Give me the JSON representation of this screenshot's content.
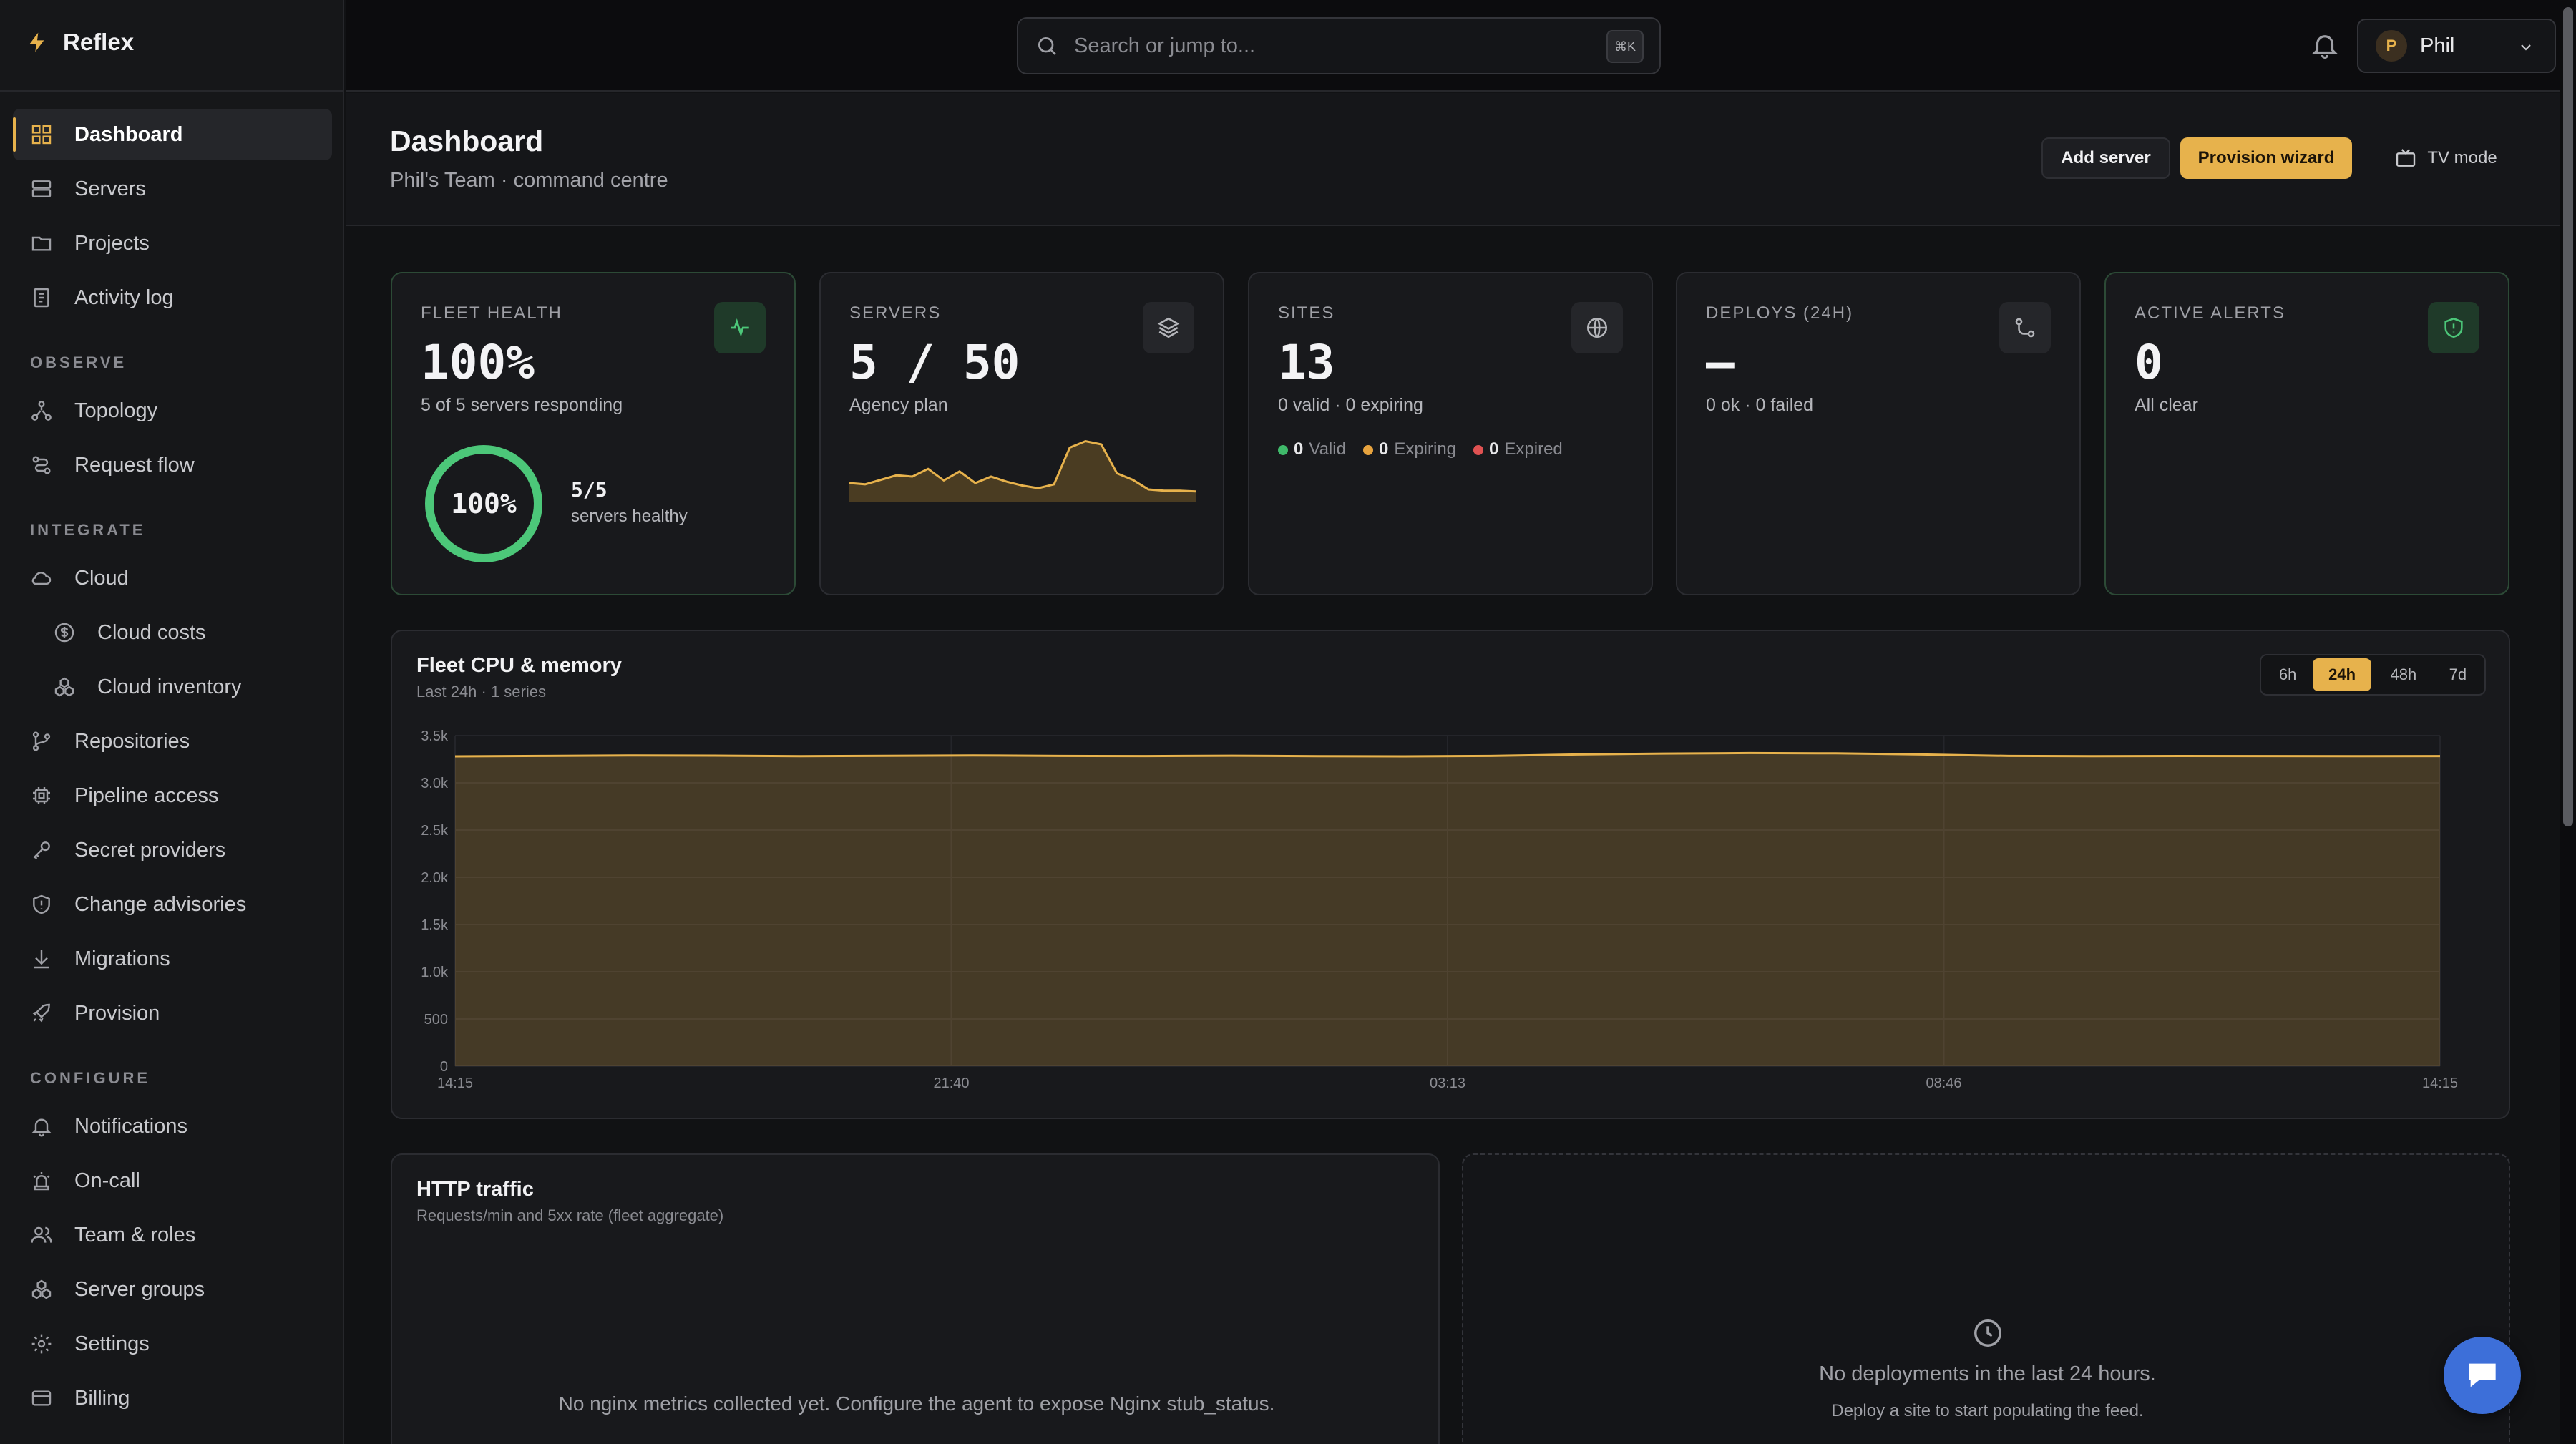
{
  "app": {
    "name": "Reflex"
  },
  "sidebar": {
    "items": [
      {
        "label": "Dashboard"
      },
      {
        "label": "Servers"
      },
      {
        "label": "Projects"
      },
      {
        "label": "Activity log"
      }
    ],
    "observe_title": "OBSERVE",
    "observe_items": [
      {
        "label": "Topology"
      },
      {
        "label": "Request flow"
      }
    ],
    "integrate_title": "INTEGRATE",
    "integrate_items": [
      {
        "label": "Cloud"
      },
      {
        "label": "Cloud costs"
      },
      {
        "label": "Cloud inventory"
      },
      {
        "label": "Repositories"
      },
      {
        "label": "Pipeline access"
      },
      {
        "label": "Secret providers"
      },
      {
        "label": "Change advisories"
      },
      {
        "label": "Migrations"
      },
      {
        "label": "Provision"
      }
    ],
    "configure_title": "CONFIGURE",
    "configure_items": [
      {
        "label": "Notifications"
      },
      {
        "label": "On-call"
      },
      {
        "label": "Team & roles"
      },
      {
        "label": "Server groups"
      },
      {
        "label": "Settings"
      },
      {
        "label": "Billing"
      }
    ]
  },
  "topbar": {
    "search_placeholder": "Search or jump to...",
    "search_shortcut": "⌘K",
    "user_initial": "P",
    "user_name": "Phil"
  },
  "header": {
    "title": "Dashboard",
    "subtitle": "Phil's Team · command centre",
    "add_server": "Add server",
    "provision_wizard": "Provision wizard",
    "tv_mode": "TV mode"
  },
  "cards": {
    "fleet_health": {
      "label": "FLEET HEALTH",
      "value": "100%",
      "sub": "5 of 5 servers responding",
      "ring_value": "100%",
      "ring_fraction": 1.0,
      "healthy_count": "5/5",
      "healthy_label": "servers healthy"
    },
    "servers": {
      "label": "SERVERS",
      "value": "5 / 50",
      "sub": "Agency plan",
      "spark": [
        0.3,
        0.28,
        0.35,
        0.42,
        0.4,
        0.52,
        0.34,
        0.48,
        0.3,
        0.4,
        0.32,
        0.26,
        0.22,
        0.28,
        0.85,
        0.95,
        0.9,
        0.45,
        0.35,
        0.2,
        0.18,
        0.18,
        0.17
      ]
    },
    "sites": {
      "label": "SITES",
      "value": "13",
      "sub": "0 valid · 0 expiring",
      "legend": [
        {
          "count": "0",
          "label": "Valid",
          "color": "#3fb96a"
        },
        {
          "count": "0",
          "label": "Expiring",
          "color": "#e7a33e"
        },
        {
          "count": "0",
          "label": "Expired",
          "color": "#e05252"
        }
      ]
    },
    "deploys": {
      "label": "DEPLOYS (24H)",
      "value": "—",
      "sub": "0 ok · 0 failed"
    },
    "alerts": {
      "label": "ACTIVE ALERTS",
      "value": "0",
      "sub": "All clear"
    }
  },
  "fleet_chart": {
    "title": "Fleet CPU & memory",
    "subtitle": "Last 24h · 1 series",
    "ranges": [
      "6h",
      "24h",
      "48h",
      "7d"
    ],
    "active_range": "24h"
  },
  "chart_data": {
    "type": "area",
    "title": "Fleet CPU & memory",
    "x_ticks": [
      "14:15",
      "21:40",
      "03:13",
      "08:46",
      "14:15"
    ],
    "y_ticks": [
      "0",
      "500",
      "1.0k",
      "1.5k",
      "2.0k",
      "2.5k",
      "3.0k",
      "3.5k"
    ],
    "ylim": [
      0,
      3500
    ],
    "series": [
      {
        "values": [
          3280,
          3285,
          3290,
          3288,
          3282,
          3286,
          3290,
          3285,
          3283,
          3287,
          3282,
          3280,
          3285,
          3300,
          3310,
          3315,
          3312,
          3300,
          3285,
          3282,
          3284,
          3283,
          3282,
          3283
        ]
      }
    ],
    "grid": true,
    "color": "#e7b24c"
  },
  "http_traffic": {
    "title": "HTTP traffic",
    "subtitle": "Requests/min and 5xx rate (fleet aggregate)",
    "empty": "No nginx metrics collected yet. Configure the agent to expose Nginx stub_status."
  },
  "deployments": {
    "empty_title": "No deployments in the last 24 hours.",
    "empty_sub": "Deploy a site to start populating the feed."
  }
}
